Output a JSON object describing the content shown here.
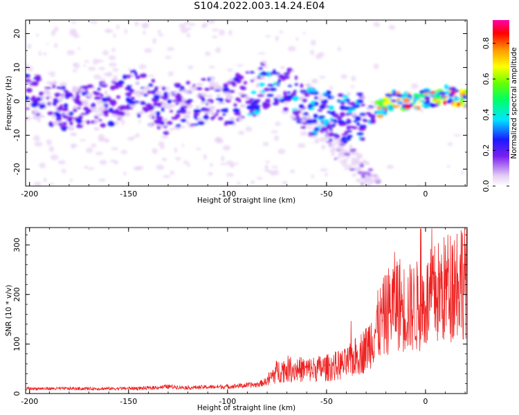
{
  "page": {
    "title": "S104.2022.003.14.24.E04"
  },
  "chart_data": [
    {
      "type": "heatmap",
      "title": "S104.2022.003.14.24.E04",
      "xlabel": "Height of straight line (km)",
      "ylabel": "Frequency (Hz)",
      "xlim": [
        -202,
        21
      ],
      "ylim": [
        -25,
        24
      ],
      "x_ticks": [
        -200,
        -150,
        -100,
        -50,
        0
      ],
      "y_ticks": [
        -20,
        -10,
        0,
        10,
        20
      ],
      "ridge": [
        {
          "x": -200,
          "y": 1.5
        },
        {
          "x": -190,
          "y": 0
        },
        {
          "x": -180,
          "y": -3
        },
        {
          "x": -170,
          "y": -2
        },
        {
          "x": -160,
          "y": -1
        },
        {
          "x": -150,
          "y": 3
        },
        {
          "x": -140,
          "y": 0
        },
        {
          "x": -130,
          "y": -3
        },
        {
          "x": -120,
          "y": -1
        },
        {
          "x": -110,
          "y": 0
        },
        {
          "x": -100,
          "y": 0
        },
        {
          "x": -90,
          "y": 2
        },
        {
          "x": -80,
          "y": 5
        },
        {
          "x": -75,
          "y": 6
        },
        {
          "x": -70,
          "y": 4
        },
        {
          "x": -65,
          "y": 1
        },
        {
          "x": -60,
          "y": -2
        },
        {
          "x": -55,
          "y": -3
        },
        {
          "x": -50,
          "y": -4
        },
        {
          "x": -45,
          "y": -5
        },
        {
          "x": -40,
          "y": -5
        },
        {
          "x": -35,
          "y": -4
        },
        {
          "x": -30,
          "y": -5
        },
        {
          "x": -25,
          "y": -3
        },
        {
          "x": -20,
          "y": -1
        },
        {
          "x": -15,
          "y": 1
        },
        {
          "x": -10,
          "y": 0
        },
        {
          "x": -5,
          "y": 0
        },
        {
          "x": 0,
          "y": 1
        },
        {
          "x": 5,
          "y": 1
        },
        {
          "x": 10,
          "y": 2
        },
        {
          "x": 15,
          "y": 1
        },
        {
          "x": 20,
          "y": 1
        }
      ],
      "colorbar": {
        "label": "Normalized spectral amplitude",
        "range": [
          0.0,
          0.93
        ],
        "ticks": [
          0.0,
          0.2,
          0.4,
          0.6,
          0.8
        ],
        "colormap": "rainbow (white-purple-blue-cyan-green-yellow-red-magenta)"
      },
      "grid": false
    },
    {
      "type": "line",
      "xlabel": "Height of straight line (km)",
      "ylabel": "SNR (10 * v/v)",
      "xlim": [
        -202,
        21
      ],
      "ylim": [
        0,
        335
      ],
      "x_ticks": [
        -200,
        -150,
        -100,
        -50,
        0
      ],
      "y_ticks": [
        0,
        100,
        200,
        300
      ],
      "series": [
        {
          "color": "#ee2222",
          "x": [
            -200,
            -180,
            -160,
            -140,
            -130,
            -120,
            -100,
            -85,
            -80,
            -75,
            -70,
            -60,
            -50,
            -40,
            -30,
            -25,
            -20,
            -15,
            -10,
            -5,
            0,
            5,
            10,
            15,
            20
          ],
          "y": [
            10,
            10,
            10,
            11,
            14,
            12,
            14,
            18,
            25,
            45,
            50,
            48,
            52,
            60,
            90,
            130,
            160,
            190,
            170,
            175,
            180,
            200,
            210,
            230,
            240
          ]
        }
      ],
      "grid": false
    }
  ]
}
